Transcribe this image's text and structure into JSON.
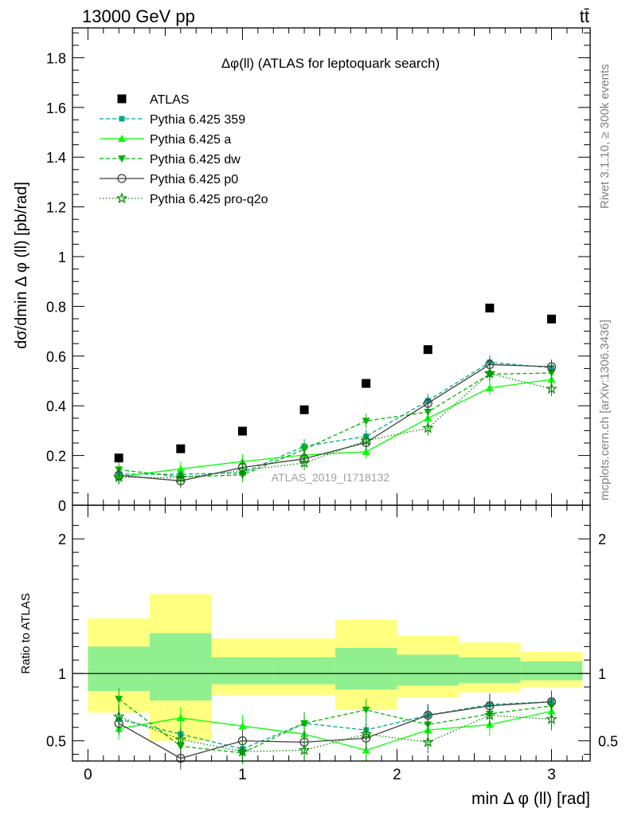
{
  "header": {
    "left": "13000 GeV pp",
    "right": "tt̄"
  },
  "side_labels": {
    "rivet": "Rivet 3.1.10, ≥ 300k events",
    "mcplots": "mcplots.cern.ch [arXiv:1306.3436]"
  },
  "chart_data": {
    "type": "scatter",
    "title": "Δφ(ll) (ATLAS for leptoquark search)",
    "xlabel": "min Δ φ (ll) [rad]",
    "ylabel": "dσ/dmin Δ φ (ll) [pb/rad]",
    "ratio_ylabel": "Ratio to ATLAS",
    "watermark": "ATLAS_2019_I1718132",
    "xlim": [
      -0.1,
      3.25
    ],
    "ylim": [
      0,
      1.92
    ],
    "ratio_ylim": [
      0.35,
      2.25
    ],
    "x_ticks": [
      "0",
      "1",
      "2",
      "3"
    ],
    "y_ticks": [
      "0",
      "0.2",
      "0.4",
      "0.6",
      "0.8",
      "1",
      "1.2",
      "1.4",
      "1.6",
      "1.8"
    ],
    "ratio_y_ticks": [
      "0.5",
      "1",
      "2"
    ],
    "bin_edges": [
      0,
      0.4,
      0.8,
      1.2,
      1.6,
      2.0,
      2.4,
      2.8,
      3.2
    ],
    "x": [
      0.2,
      0.6,
      1.0,
      1.4,
      1.8,
      2.2,
      2.6,
      3.0
    ],
    "data": {
      "name": "ATLAS",
      "values": [
        0.19,
        0.227,
        0.298,
        0.384,
        0.49,
        0.626,
        0.793,
        0.749
      ],
      "band_green_lo": [
        0.87,
        0.8,
        0.92,
        0.92,
        0.88,
        0.91,
        0.93,
        0.95
      ],
      "band_green_hi": [
        1.2,
        1.3,
        1.12,
        1.12,
        1.19,
        1.14,
        1.12,
        1.09
      ],
      "band_yellow_lo": [
        0.71,
        0.5,
        0.84,
        0.84,
        0.73,
        0.82,
        0.86,
        0.9
      ],
      "band_yellow_hi": [
        1.41,
        1.59,
        1.26,
        1.26,
        1.4,
        1.28,
        1.23,
        1.16
      ]
    },
    "series": [
      {
        "name": "Pythia 6.425 359",
        "color": "#00a88a",
        "dash": "5,3",
        "marker": "square",
        "values": [
          0.125,
          0.125,
          0.13,
          0.237,
          0.277,
          0.42,
          0.575,
          0.553
        ],
        "ratio": [
          0.66,
          0.55,
          0.44,
          0.63,
          0.58,
          0.69,
          0.77,
          0.79
        ]
      },
      {
        "name": "Pythia 6.425 a",
        "color": "#00ff00",
        "dash": "",
        "marker": "triangle-up",
        "values": [
          0.115,
          0.146,
          0.176,
          0.202,
          0.215,
          0.35,
          0.472,
          0.506
        ],
        "ratio": [
          0.59,
          0.67,
          0.61,
          0.55,
          0.43,
          0.58,
          0.62,
          0.72
        ]
      },
      {
        "name": "Pythia 6.425 dw",
        "color": "#00b400",
        "dash": "5,3",
        "marker": "triangle-down",
        "values": [
          0.143,
          0.114,
          0.122,
          0.225,
          0.339,
          0.375,
          0.527,
          0.532
        ],
        "ratio": [
          0.81,
          0.46,
          0.41,
          0.63,
          0.73,
          0.62,
          0.7,
          0.76
        ]
      },
      {
        "name": "Pythia 6.425 p0",
        "color": "#404040",
        "dash": "",
        "marker": "circle-open",
        "values": [
          0.12,
          0.098,
          0.152,
          0.187,
          0.252,
          0.41,
          0.566,
          0.557
        ],
        "ratio": [
          0.63,
          0.37,
          0.5,
          0.49,
          0.52,
          0.69,
          0.76,
          0.79
        ]
      },
      {
        "name": "Pythia 6.425 pro-q2o",
        "color": "#008a00",
        "dash": "1.5,2.5",
        "marker": "star-open",
        "values": [
          0.112,
          0.111,
          0.14,
          0.17,
          0.26,
          0.31,
          0.53,
          0.468
        ],
        "ratio": [
          0.68,
          0.51,
          0.42,
          0.43,
          0.55,
          0.49,
          0.69,
          0.66
        ]
      }
    ]
  }
}
